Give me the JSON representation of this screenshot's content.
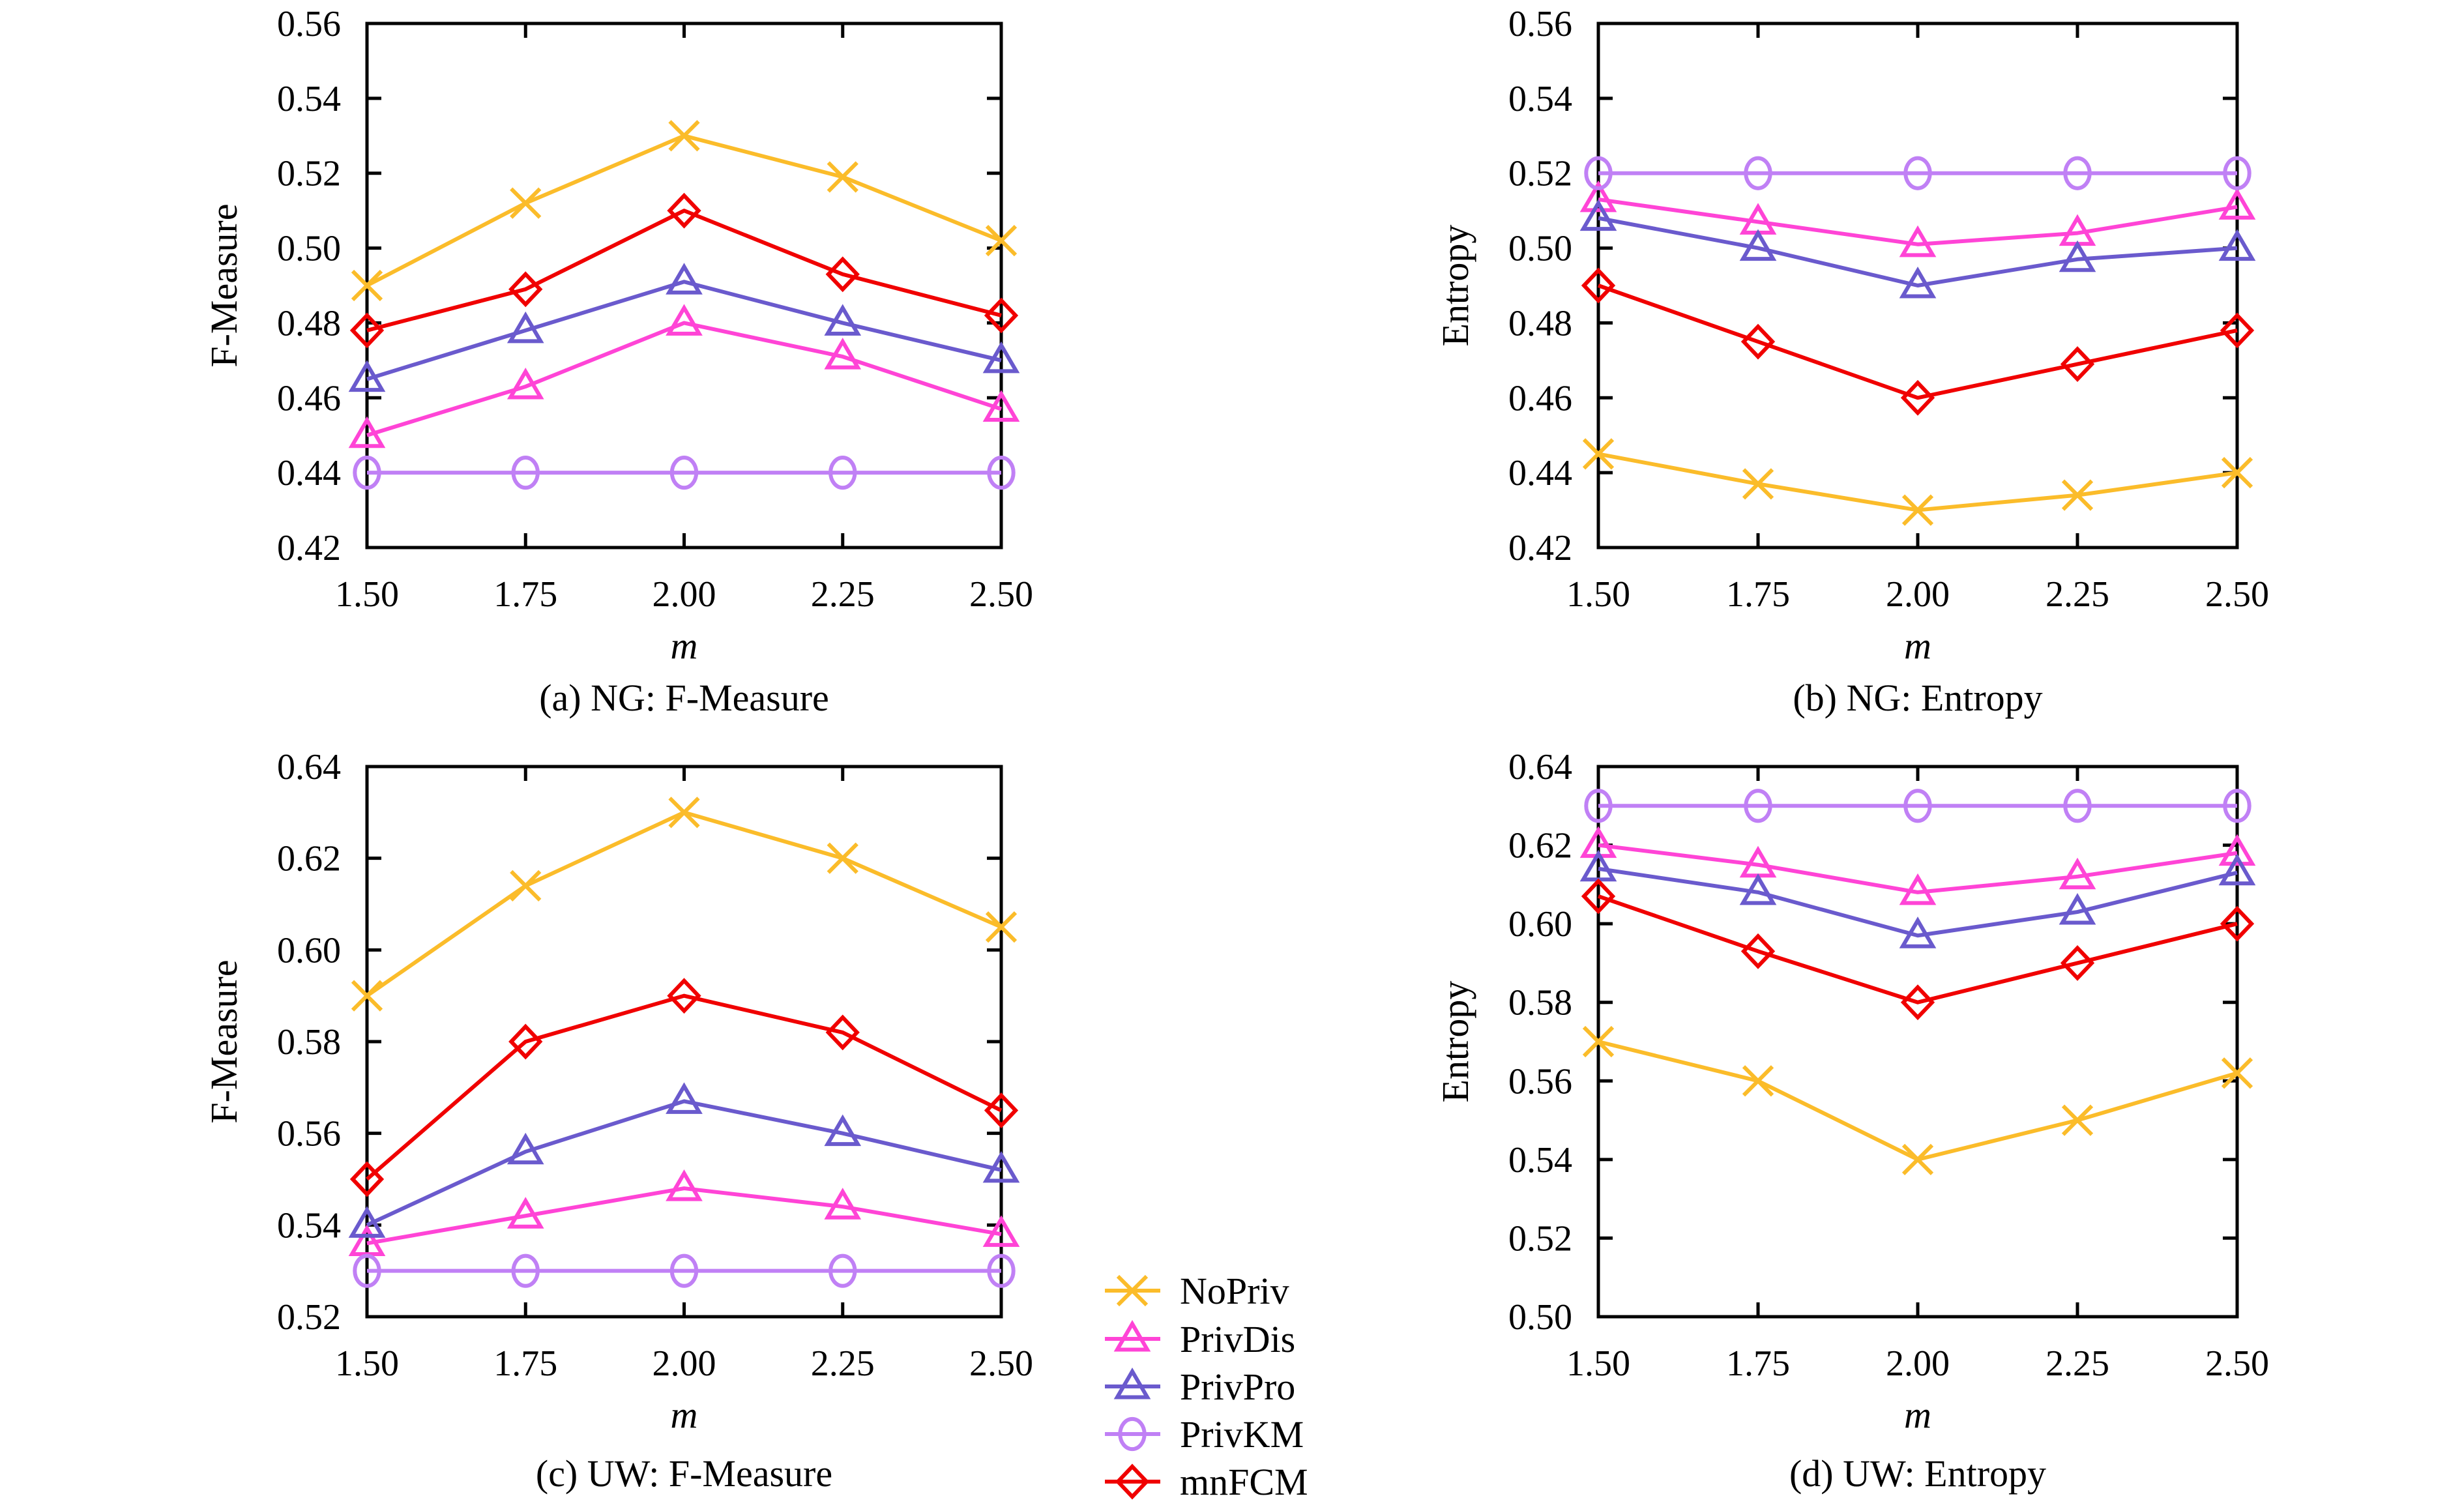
{
  "series_styles": [
    {
      "name": "NoPriv",
      "color": "#FBBC2A",
      "marker": "cross"
    },
    {
      "name": "PrivDis",
      "color": "#FF44D6",
      "marker": "triangle"
    },
    {
      "name": "PrivPro",
      "color": "#6A5ACD",
      "marker": "triangle"
    },
    {
      "name": "PrivKM",
      "color": "#C080F5",
      "marker": "circle"
    },
    {
      "name": "mnFCM",
      "color": "#F00000",
      "marker": "diamond"
    }
  ],
  "legend": {
    "entries": [
      "NoPriv",
      "PrivDis",
      "PrivPro",
      "PrivKM",
      "mnFCM"
    ],
    "placement": "bottom-center"
  },
  "chart_data": [
    {
      "id": "a",
      "type": "line",
      "title": "(a) NG: F-Measure",
      "xlabel": "m",
      "ylabel": "F-Measure",
      "x": [
        1.5,
        1.75,
        2.0,
        2.25,
        2.5
      ],
      "x_tick_labels": [
        "1.50",
        "1.75",
        "2.00",
        "2.25",
        "2.50"
      ],
      "ylim": [
        0.42,
        0.56
      ],
      "y_ticks": [
        0.42,
        0.44,
        0.46,
        0.48,
        0.5,
        0.52,
        0.54,
        0.56
      ],
      "y_tick_labels": [
        "0.42",
        "0.44",
        "0.46",
        "0.48",
        "0.50",
        "0.52",
        "0.54",
        "0.56"
      ],
      "grid": false,
      "series": [
        {
          "name": "NoPriv",
          "values": [
            0.49,
            0.512,
            0.53,
            0.519,
            0.502
          ]
        },
        {
          "name": "PrivDis",
          "values": [
            0.45,
            0.463,
            0.48,
            0.471,
            0.457
          ]
        },
        {
          "name": "PrivPro",
          "values": [
            0.465,
            0.478,
            0.491,
            0.48,
            0.47
          ]
        },
        {
          "name": "PrivKM",
          "values": [
            0.44,
            0.44,
            0.44,
            0.44,
            0.44
          ]
        },
        {
          "name": "mnFCM",
          "values": [
            0.478,
            0.489,
            0.51,
            0.493,
            0.482
          ]
        }
      ]
    },
    {
      "id": "b",
      "type": "line",
      "title": "(b) NG: Entropy",
      "xlabel": "m",
      "ylabel": "Entropy",
      "x": [
        1.5,
        1.75,
        2.0,
        2.25,
        2.5
      ],
      "x_tick_labels": [
        "1.50",
        "1.75",
        "2.00",
        "2.25",
        "2.50"
      ],
      "ylim": [
        0.42,
        0.56
      ],
      "y_ticks": [
        0.42,
        0.44,
        0.46,
        0.48,
        0.5,
        0.52,
        0.54,
        0.56
      ],
      "y_tick_labels": [
        "0.42",
        "0.44",
        "0.46",
        "0.48",
        "0.50",
        "0.52",
        "0.54",
        "0.56"
      ],
      "grid": false,
      "series": [
        {
          "name": "NoPriv",
          "values": [
            0.445,
            0.437,
            0.43,
            0.434,
            0.44
          ]
        },
        {
          "name": "PrivDis",
          "values": [
            0.513,
            0.507,
            0.501,
            0.504,
            0.511
          ]
        },
        {
          "name": "PrivPro",
          "values": [
            0.508,
            0.5,
            0.49,
            0.497,
            0.5
          ]
        },
        {
          "name": "PrivKM",
          "values": [
            0.52,
            0.52,
            0.52,
            0.52,
            0.52
          ]
        },
        {
          "name": "mnFCM",
          "values": [
            0.49,
            0.475,
            0.46,
            0.469,
            0.478
          ]
        }
      ]
    },
    {
      "id": "c",
      "type": "line",
      "title": "(c) UW: F-Measure",
      "xlabel": "m",
      "ylabel": "F-Measure",
      "x": [
        1.5,
        1.75,
        2.0,
        2.25,
        2.5
      ],
      "x_tick_labels": [
        "1.50",
        "1.75",
        "2.00",
        "2.25",
        "2.50"
      ],
      "ylim": [
        0.52,
        0.64
      ],
      "y_ticks": [
        0.52,
        0.54,
        0.56,
        0.58,
        0.6,
        0.62,
        0.64
      ],
      "y_tick_labels": [
        "0.52",
        "0.54",
        "0.56",
        "0.58",
        "0.60",
        "0.62",
        "0.64"
      ],
      "grid": false,
      "series": [
        {
          "name": "NoPriv",
          "values": [
            0.59,
            0.614,
            0.63,
            0.62,
            0.605
          ]
        },
        {
          "name": "PrivDis",
          "values": [
            0.536,
            0.542,
            0.548,
            0.544,
            0.538
          ]
        },
        {
          "name": "PrivPro",
          "values": [
            0.54,
            0.556,
            0.567,
            0.56,
            0.552
          ]
        },
        {
          "name": "PrivKM",
          "values": [
            0.53,
            0.53,
            0.53,
            0.53,
            0.53
          ]
        },
        {
          "name": "mnFCM",
          "values": [
            0.55,
            0.58,
            0.59,
            0.582,
            0.565
          ]
        }
      ]
    },
    {
      "id": "d",
      "type": "line",
      "title": "(d) UW: Entropy",
      "xlabel": "m",
      "ylabel": "Entropy",
      "x": [
        1.5,
        1.75,
        2.0,
        2.25,
        2.5
      ],
      "x_tick_labels": [
        "1.50",
        "1.75",
        "2.00",
        "2.25",
        "2.50"
      ],
      "ylim": [
        0.5,
        0.64
      ],
      "y_ticks": [
        0.5,
        0.52,
        0.54,
        0.56,
        0.58,
        0.6,
        0.62,
        0.64
      ],
      "y_tick_labels": [
        "0.50",
        "0.52",
        "0.54",
        "0.56",
        "0.58",
        "0.60",
        "0.62",
        "0.64"
      ],
      "grid": false,
      "series": [
        {
          "name": "NoPriv",
          "values": [
            0.57,
            0.56,
            0.54,
            0.55,
            0.562
          ]
        },
        {
          "name": "PrivDis",
          "values": [
            0.62,
            0.615,
            0.608,
            0.612,
            0.618
          ]
        },
        {
          "name": "PrivPro",
          "values": [
            0.614,
            0.608,
            0.597,
            0.603,
            0.613
          ]
        },
        {
          "name": "PrivKM",
          "values": [
            0.63,
            0.63,
            0.63,
            0.63,
            0.63
          ]
        },
        {
          "name": "mnFCM",
          "values": [
            0.607,
            0.593,
            0.58,
            0.59,
            0.6
          ]
        }
      ]
    }
  ]
}
